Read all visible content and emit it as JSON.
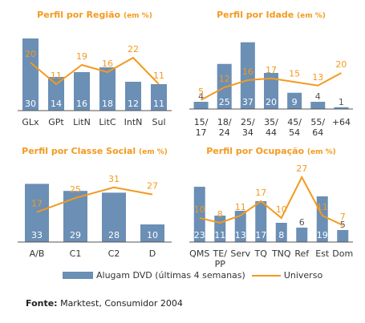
{
  "colors": {
    "bar": "#6b8fb5",
    "line": "#f39a1e",
    "title": "#f39a1e",
    "axis": "#555555",
    "text": "#333333"
  },
  "legend": {
    "bar_label": "Alugam DVD (últimas 4 semanas)",
    "line_label": "Universo"
  },
  "source": {
    "label": "Fonte:",
    "text": "Marktest, Consumidor 2004"
  },
  "chart_data": [
    {
      "type": "bar",
      "title": "Perfil por Região",
      "title_suffix": "(em %)",
      "categories": [
        "GLx",
        "GPt",
        "LitN",
        "LitC",
        "IntN",
        "Sul"
      ],
      "series": [
        {
          "name": "Alugam DVD (últimas 4 semanas)",
          "values": [
            30,
            14,
            16,
            18,
            12,
            11
          ]
        },
        {
          "name": "Universo",
          "values": [
            20,
            11,
            19,
            16,
            22,
            11
          ]
        }
      ]
    },
    {
      "type": "bar",
      "title": "Perfil por Idade",
      "title_suffix": "(em %)",
      "categories": [
        "15/ 17",
        "18/ 24",
        "25/ 34",
        "35/ 44",
        "45/ 54",
        "55/ 64",
        "+64"
      ],
      "series": [
        {
          "name": "Alugam DVD (últimas 4 semanas)",
          "values": [
            4,
            25,
            37,
            20,
            9,
            4,
            1
          ]
        },
        {
          "name": "Universo",
          "values": [
            5,
            12,
            16,
            17,
            15,
            13,
            20
          ]
        }
      ]
    },
    {
      "type": "bar",
      "title": "Perfil por Classe Social",
      "title_suffix": "(em %)",
      "categories": [
        "A/B",
        "C1",
        "C2",
        "D"
      ],
      "series": [
        {
          "name": "Alugam DVD (últimas 4 semanas)",
          "values": [
            33,
            29,
            28,
            10
          ]
        },
        {
          "name": "Universo",
          "values": [
            17,
            25,
            31,
            27
          ]
        }
      ]
    },
    {
      "type": "bar",
      "title": "Perfil por Ocupação",
      "title_suffix": "(em %)",
      "categories": [
        "QMS",
        "TE/ PP",
        "Serv",
        "TQ",
        "TNQ",
        "Ref",
        "Est",
        "Dom"
      ],
      "series": [
        {
          "name": "Alugam DVD (últimas 4 semanas)",
          "values": [
            23,
            11,
            13,
            17,
            8,
            6,
            19,
            5
          ]
        },
        {
          "name": "Universo",
          "values": [
            10,
            8,
            11,
            17,
            10,
            27,
            11,
            7
          ]
        }
      ]
    }
  ]
}
